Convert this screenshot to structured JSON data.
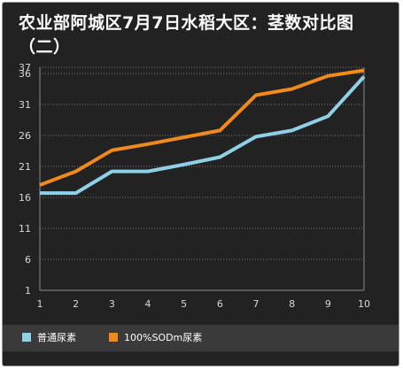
{
  "title": "农业部阿城区7月7日水稻大区：茎数对比图（二）",
  "chart_data": {
    "type": "line",
    "title": "农业部阿城区7月7日水稻大区：茎数对比图（二）",
    "x": [
      1,
      2,
      3,
      4,
      5,
      6,
      7,
      8,
      9,
      10
    ],
    "y_ticks": [
      1,
      6,
      11,
      16,
      21,
      26,
      31,
      36,
      37
    ],
    "ylim": [
      1,
      37
    ],
    "xlim": [
      1,
      10
    ],
    "grid": "horizontal dotted",
    "legend_position": "bottom",
    "series": [
      {
        "name": "普通尿素",
        "color": "#8ed0e6",
        "values": [
          16.7,
          16.7,
          20.2,
          20.2,
          21.3,
          22.5,
          25.8,
          26.8,
          29.1,
          35.5
        ]
      },
      {
        "name": "100%SODm尿素",
        "color": "#f0891e",
        "values": [
          18.0,
          20.2,
          23.6,
          24.6,
          25.7,
          26.8,
          32.5,
          33.5,
          35.6,
          36.5
        ]
      }
    ]
  }
}
